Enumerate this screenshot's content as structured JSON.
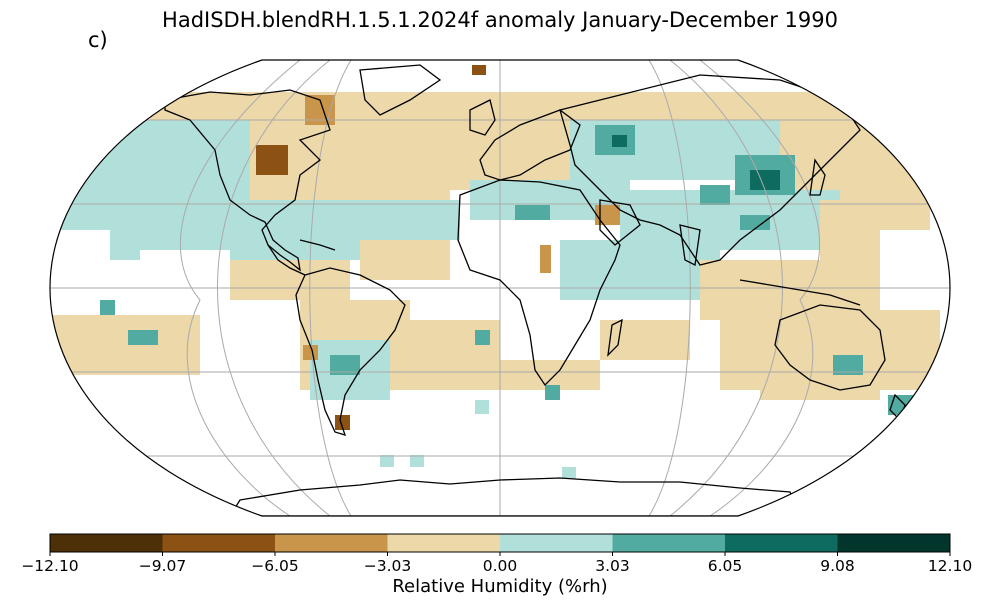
{
  "title": "HadISDH.blendRH.1.5.1.2024f anomaly January-December 1990",
  "panel_label": "c)",
  "colorbar": {
    "label": "Relative Humidity (%rh)",
    "ticks": [
      "−12.10",
      "−9.07",
      "−6.05",
      "−3.03",
      "0.00",
      "3.03",
      "6.05",
      "9.08",
      "12.10"
    ],
    "colors": [
      "#4d3008",
      "#8c5213",
      "#c9954a",
      "#ecd8a8",
      "#b1e0da",
      "#52aba0",
      "#0e6b5f",
      "#02362d"
    ]
  },
  "map": {
    "projection": "Robinson",
    "ocean_color": "#ffffff",
    "coastline_color": "#000000",
    "gridline_color": "#aaaaaa"
  }
}
